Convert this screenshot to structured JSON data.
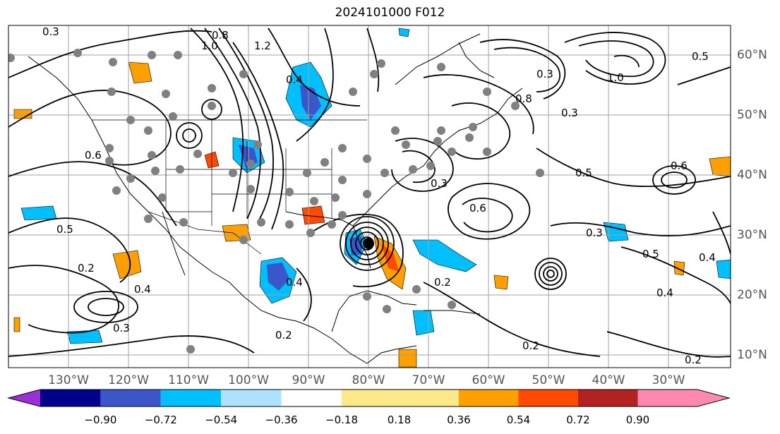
{
  "title": "2024101000 F012",
  "lon_labels": [
    "130°W",
    "120°W",
    "110°W",
    "100°W",
    "90°W",
    "80°W",
    "70°W",
    "60°W",
    "50°W",
    "40°W",
    "30°W"
  ],
  "lat_labels": [
    "60°N",
    "50°N",
    "40°N",
    "30°N",
    "20°N",
    "10°N"
  ],
  "colorbar": {
    "ticks": [
      "−0.90",
      "−0.72",
      "−0.54",
      "−0.36",
      "−0.18",
      "0.18",
      "0.36",
      "0.54",
      "0.72",
      "0.90"
    ],
    "colors": [
      "#9b30d9",
      "#00008b",
      "#3a56c8",
      "#00bfff",
      "#aee2ff",
      "#ffffff",
      "#ffe88a",
      "#ffa000",
      "#ff4a00",
      "#b22222",
      "#ff88b0"
    ]
  },
  "contour_labels": [
    "0.3",
    "0.5",
    "0.2",
    "0.4",
    "0.6",
    "0.8",
    "1.0",
    "1.2",
    "0.3",
    "0.5",
    "0.2",
    "0.4",
    "0.6",
    "0.8",
    "1.0",
    "0.3",
    "0.5",
    "0.2",
    "0.4",
    "0.3",
    "0.5",
    "0.6",
    "0.4",
    "0.2",
    "0.3",
    "0.2",
    "0.3",
    "0.4"
  ]
}
